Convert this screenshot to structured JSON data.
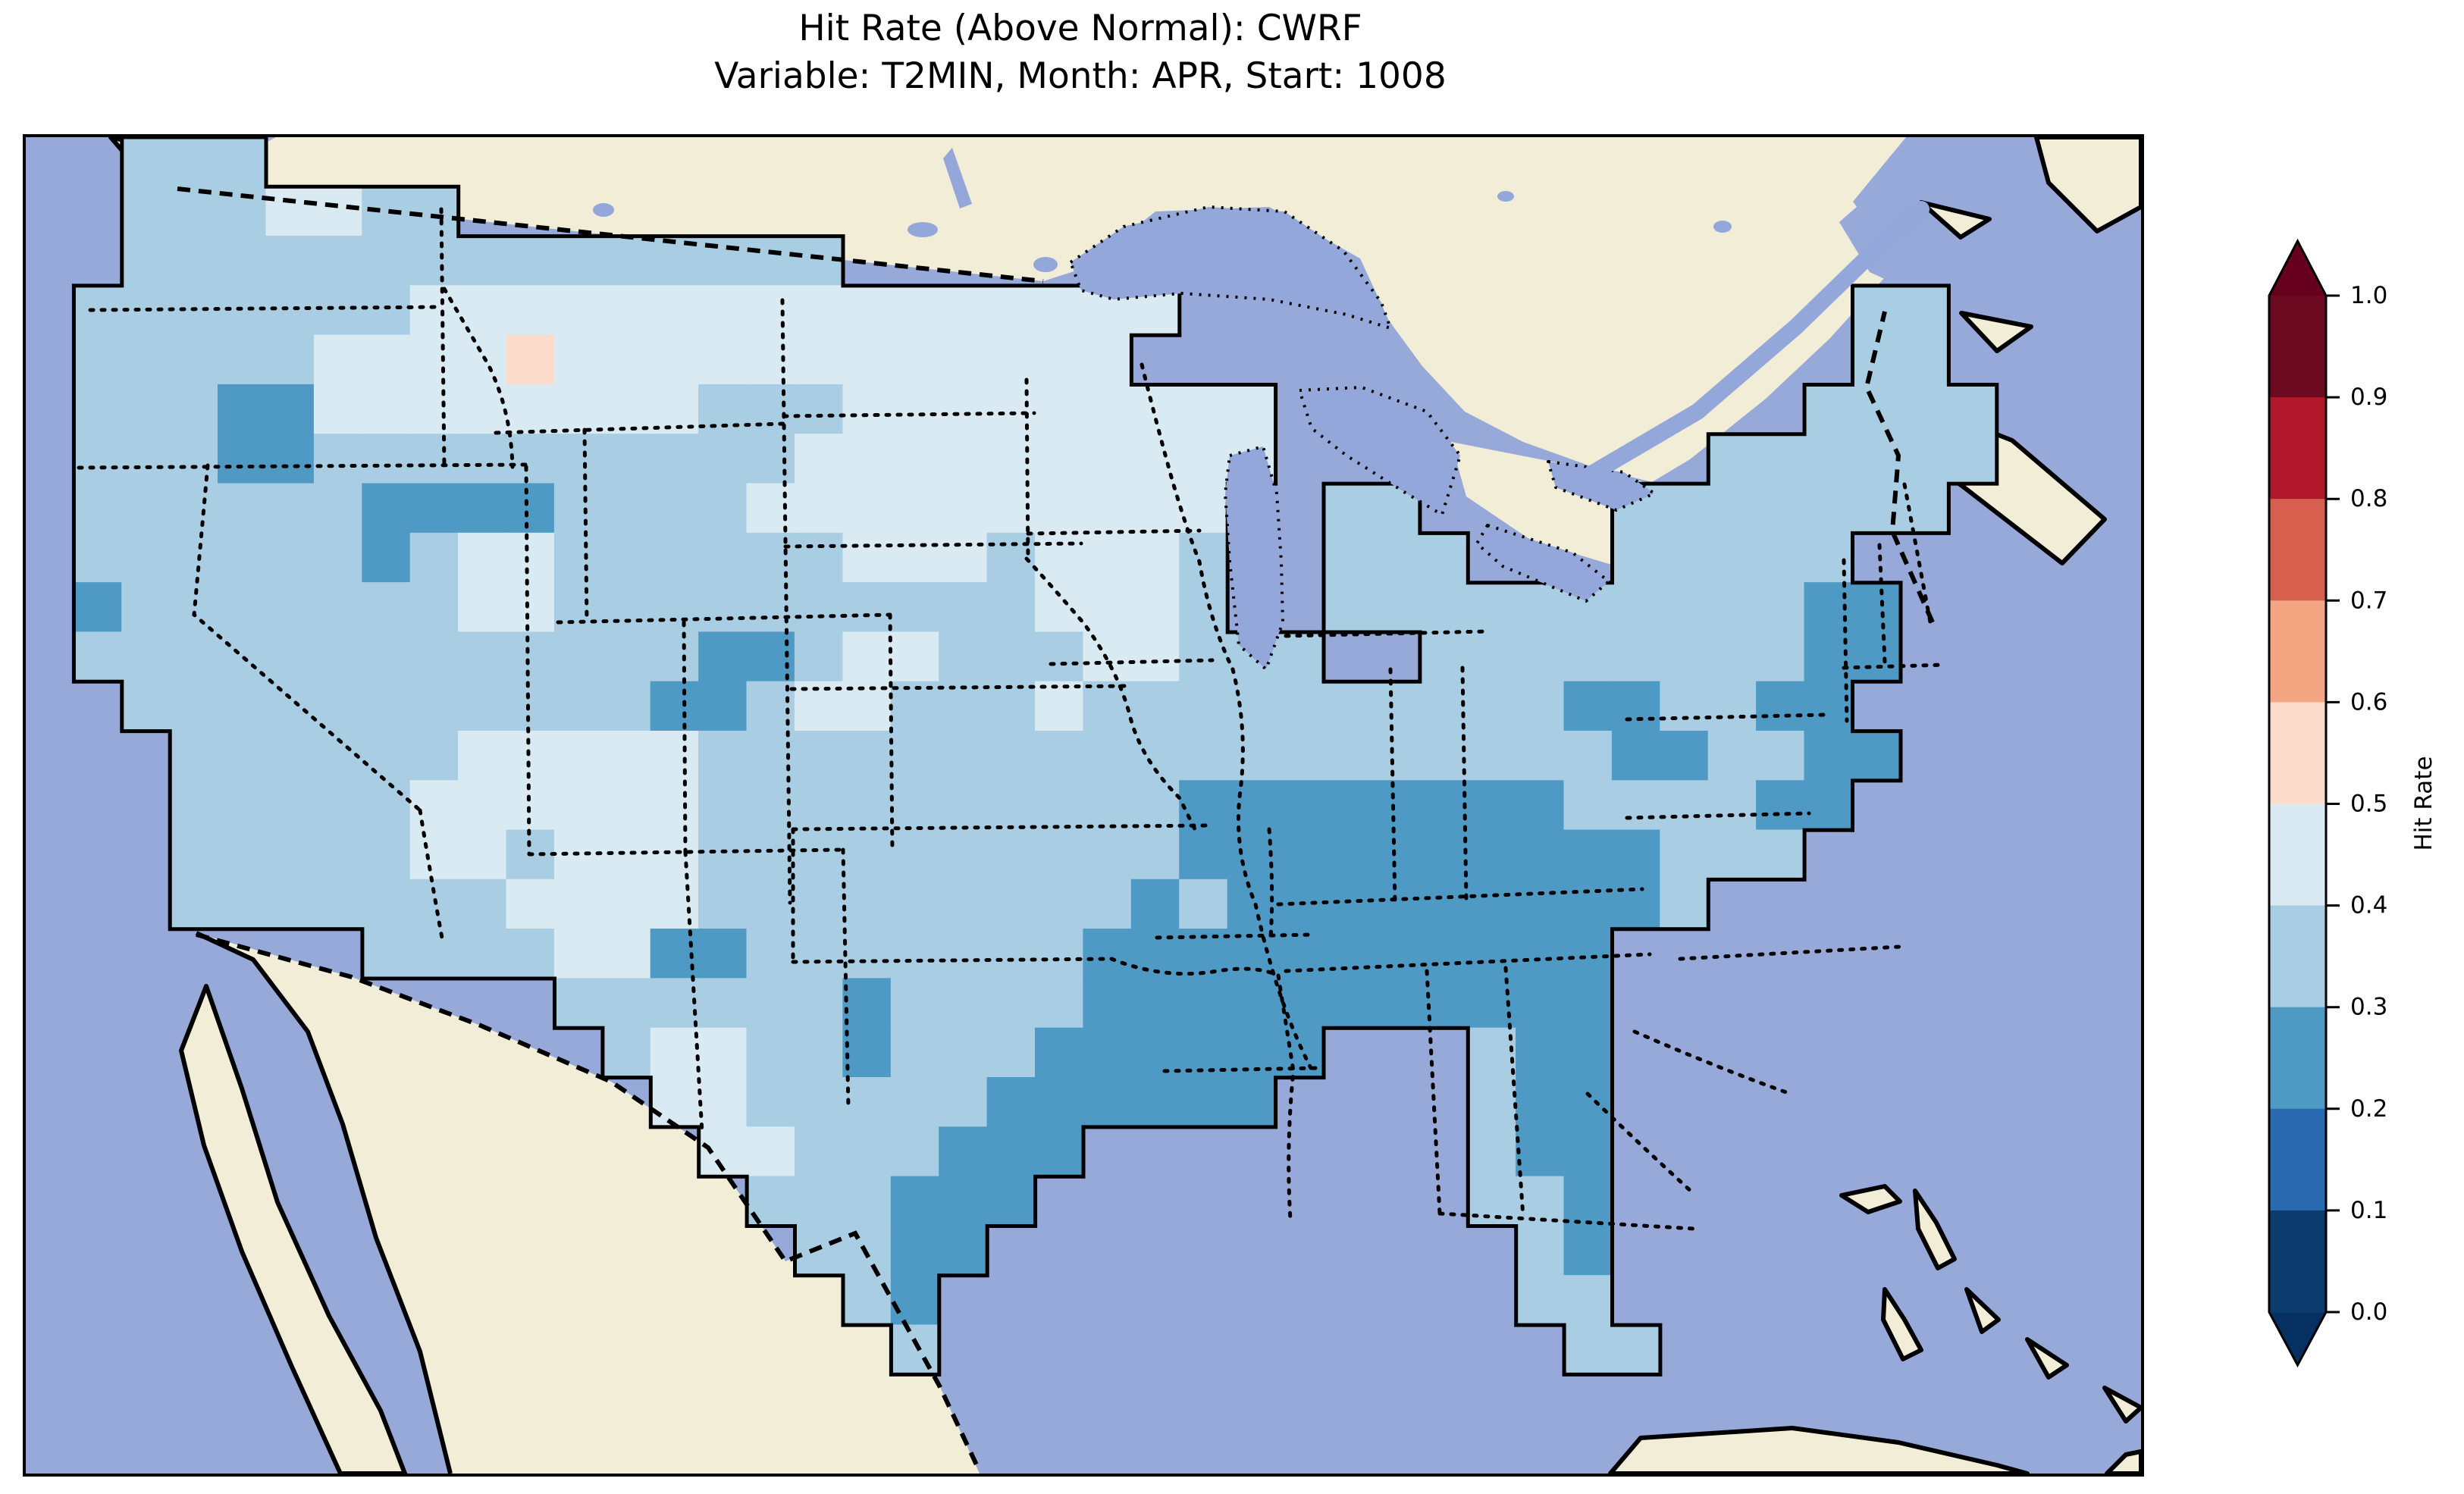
{
  "title": {
    "line1": "Hit Rate (Above Normal): CWRF",
    "line2": "Variable: T2MIN, Month: APR, Start: 1008"
  },
  "colorbar": {
    "label": "Hit Rate",
    "orientation": "vertical",
    "extend": "both",
    "arrow_over_color": "#67001f",
    "arrow_under_color": "#053061",
    "ticks": [
      {
        "label": "1.0",
        "value": 1.0
      },
      {
        "label": "0.9",
        "value": 0.9
      },
      {
        "label": "0.8",
        "value": 0.8
      },
      {
        "label": "0.7",
        "value": 0.7
      },
      {
        "label": "0.6",
        "value": 0.6
      },
      {
        "label": "0.5",
        "value": 0.5
      },
      {
        "label": "0.4",
        "value": 0.4
      },
      {
        "label": "0.3",
        "value": 0.3
      },
      {
        "label": "0.2",
        "value": 0.2
      },
      {
        "label": "0.1",
        "value": 0.1
      },
      {
        "label": "0.0",
        "value": 0.0
      }
    ],
    "segments": [
      {
        "range": "0.9-1.0",
        "color": "#6b0a21"
      },
      {
        "range": "0.8-0.9",
        "color": "#b2182b"
      },
      {
        "range": "0.7-0.8",
        "color": "#d6604d"
      },
      {
        "range": "0.6-0.7",
        "color": "#f4a582"
      },
      {
        "range": "0.5-0.6",
        "color": "#fbdccb"
      },
      {
        "range": "0.4-0.5",
        "color": "#d9eaf3"
      },
      {
        "range": "0.3-0.4",
        "color": "#a9cee3"
      },
      {
        "range": "0.2-0.3",
        "color": "#4f9ac5"
      },
      {
        "range": "0.1-0.2",
        "color": "#2a6ab0"
      },
      {
        "range": "0.0-0.1",
        "color": "#0c3c6e"
      }
    ]
  },
  "map": {
    "colors": {
      "ocean": "#97a9d9",
      "land_outside_us": "#f1edd7",
      "lakes": "#93a7da",
      "coastline": "#000000",
      "state_border": "#000000"
    }
  },
  "chart_data": {
    "type": "heatmap",
    "title": "Hit Rate (Above Normal): CWRF",
    "subtitle": "Variable: T2MIN, Month: APR, Start: 1008",
    "metric": "Hit Rate (Above Normal)",
    "model": "CWRF",
    "variable": "T2MIN",
    "month": "APR",
    "start": "1008",
    "colormap": {
      "name": "RdBu_r",
      "n_bins": 10,
      "bin_edges": [
        0.0,
        0.1,
        0.2,
        0.3,
        0.4,
        0.5,
        0.6,
        0.7,
        0.8,
        0.9,
        1.0
      ],
      "extend": "both"
    },
    "colorbar_label": "Hit Rate",
    "value_range_observed": [
      0.2,
      0.6
    ],
    "regions_summary": [
      "Most of the contiguous US shows hit rate 0.3-0.4",
      "Large 0.2-0.3 region over the Southeast: TN, MS, AL, GA, LA, east TX coast, north and east FL",
      "0.4-0.5 patches across MT, ND, SD, MN, WI, IA, west KS, AZ and NM",
      "Single 0.5-0.6 (pale red) cell in west-central Montana",
      "Scattered 0.2-0.3 pockets: E Oregon, Idaho, Black Hills, central TX, NJ / Chesapeake Bay coast, S Indiana-Kentucky",
      "No values above 0.6 anywhere on the map"
    ],
    "grid": {
      "cols": 44,
      "rows": 27,
      "legend": {
        ".": "no data (outside CONUS)",
        "2": "0.2-0.3",
        "3": "0.3-0.4",
        "4": "0.4-0.5",
        "5": "0.5-0.6"
      },
      "cell_values": {
        "2": 0.25,
        "3": 0.35,
        "4": 0.45,
        "5": 0.55
      },
      "cell_colors": {
        "2": "#4f9ac5",
        "3": "#a9cee3",
        "4": "#d9eaf3",
        "5": "#fbdccb"
      },
      "rows_data": [
        "..333.......................................",
        "..3334433...................................",
        "..333333333333333...........................",
        ".33333334444444444444444..............33....",
        ".3333344445444444444444...............33....",
        ".3332244444444333444444444...........3333...",
        ".3332233333333334444444444.........333333...",
        ".333333222233334444444444..33....3333333....",
        ".33333323443333334443444 3..333...33333......",
        ".23333333443333333333444 3..333333333322.....",
        ".333333333333322344333443 33..3333333322......",
        "..333333333332234433343333333333223322......",
        "...333333444443333333333333333333223322.....",
        "...333334444443333333333222222223333 22......",
        "...333334434443333333333222222222 2333........",
        "...3333333444433333333323222222222 3.........",
        ".......33334422333333322222222222...........",
        "...........33333323333222222222 22...........",
        "............34433233322222 2...322...........",
        ".............4433333222222....322...........",
        "..............44333222........322...........",
        "...............333222.........332...........",
        "................3322...........32...........",
        ".................32............33...........",
        "..................3.............33..........",
        "............................................",
        "............................................"
      ]
    }
  }
}
